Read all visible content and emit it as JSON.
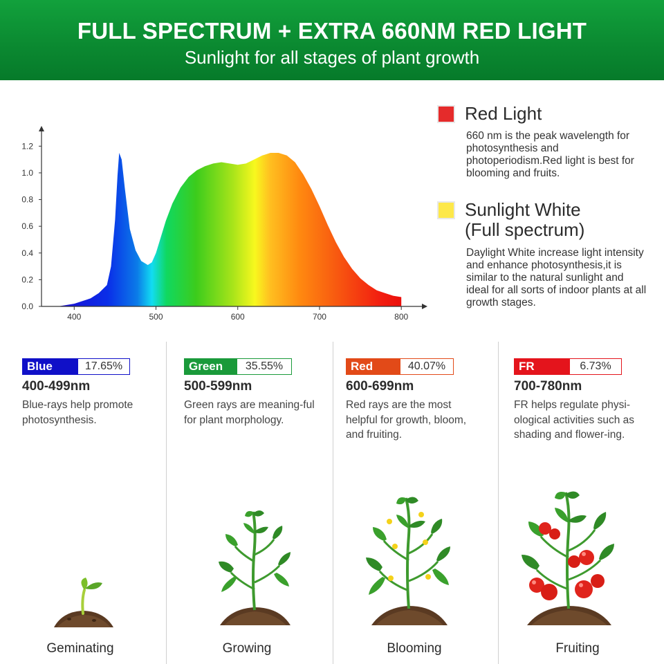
{
  "header": {
    "title": "FULL SPECTRUM + EXTRA 660NM RED LIGHT",
    "subtitle": "Sunlight for all stages of plant growth"
  },
  "legend": [
    {
      "title": "Red Light",
      "color": "#e52b2b",
      "description": "660 nm is the peak wavelength for photosynthesis and photoperiodism.Red light is best for blooming and fruits."
    },
    {
      "title": "Sunlight White\n(Full spectrum)",
      "color": "#fde84a",
      "description": "Daylight White increase light intensity and enhance photosynthesis,it is similar to the natural sunlight and ideal for all sorts of indoor plants at all growth stages."
    }
  ],
  "bands": [
    {
      "name": "Blue",
      "percent": "17.65%",
      "range": "400-499nm",
      "color": "#1010c8",
      "description": "Blue-rays help promote photosynthesis."
    },
    {
      "name": "Green",
      "percent": "35.55%",
      "range": "500-599nm",
      "color": "#1a9a3a",
      "description": "Green rays are meaning-ful for plant morphology."
    },
    {
      "name": "Red",
      "percent": "40.07%",
      "range": "600-699nm",
      "color": "#e24a18",
      "description": "Red rays are the most helpful for growth, bloom, and fruiting."
    },
    {
      "name": "FR",
      "percent": "6.73%",
      "range": "700-780nm",
      "color": "#e4141c",
      "description": "FR helps regulate physi-ological activities such as shading and flower-ing."
    }
  ],
  "stages": [
    "Geminating",
    "Growing",
    "Blooming",
    "Fruiting"
  ],
  "chart_data": {
    "type": "area",
    "title": "",
    "xlabel": "",
    "ylabel": "",
    "xlim": [
      360,
      810
    ],
    "ylim": [
      0,
      1.3
    ],
    "x_ticks": [
      400,
      500,
      600,
      700,
      800
    ],
    "y_ticks": [
      0.0,
      0.2,
      0.4,
      0.6,
      0.8,
      1.0,
      1.2
    ],
    "y_tick_labels": [
      "0.0",
      "0.2",
      "0.4",
      "0.6",
      "0.8",
      "1.0",
      "1.2"
    ],
    "grid": false,
    "series": [
      {
        "x": [
          380,
          400,
          420,
          430,
          440,
          445,
          450,
          453,
          455,
          458,
          462,
          468,
          475,
          482,
          490,
          495,
          500,
          505,
          512,
          520,
          530,
          540,
          550,
          560,
          570,
          580,
          590,
          600,
          610,
          620,
          630,
          640,
          650,
          660,
          670,
          680,
          690,
          700,
          710,
          720,
          730,
          740,
          750,
          760,
          770,
          780,
          790,
          800
        ],
        "y": [
          0.0,
          0.02,
          0.06,
          0.1,
          0.16,
          0.3,
          0.65,
          0.98,
          1.15,
          1.1,
          0.88,
          0.58,
          0.42,
          0.34,
          0.31,
          0.33,
          0.4,
          0.5,
          0.64,
          0.77,
          0.89,
          0.97,
          1.02,
          1.05,
          1.07,
          1.08,
          1.07,
          1.06,
          1.07,
          1.1,
          1.13,
          1.15,
          1.15,
          1.13,
          1.08,
          0.99,
          0.88,
          0.75,
          0.61,
          0.48,
          0.37,
          0.28,
          0.21,
          0.16,
          0.12,
          0.1,
          0.08,
          0.07
        ]
      }
    ]
  }
}
